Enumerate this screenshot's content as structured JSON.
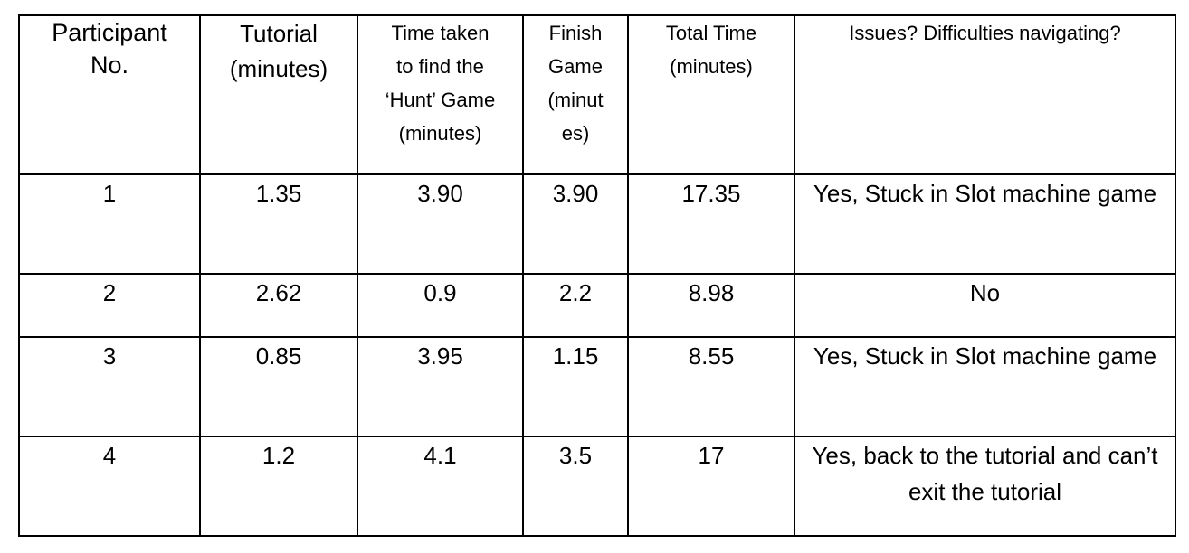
{
  "headers": [
    "Participant\nNo.",
    "Tutorial\n(minutes)",
    "Time taken\nto find the\n‘Hunt’ Game\n(minutes)",
    "Finish\nGame\n(minut\nes)",
    "Total Time\n(minutes)",
    "Issues? Difficulties navigating?"
  ],
  "rows": [
    {
      "participant": "1",
      "tutorial": "1.35",
      "hunt": "3.90",
      "finish": "3.90",
      "total": "17.35",
      "issues": "Yes, Stuck in Slot machine game"
    },
    {
      "participant": "2",
      "tutorial": "2.62",
      "hunt": "0.9",
      "finish": "2.2",
      "total": "8.98",
      "issues": "No"
    },
    {
      "participant": "3",
      "tutorial": "0.85",
      "hunt": "3.95",
      "finish": "1.15",
      "total": "8.55",
      "issues": "Yes, Stuck in Slot machine game"
    },
    {
      "participant": "4",
      "tutorial": "1.2",
      "hunt": "4.1",
      "finish": "3.5",
      "total": "17",
      "issues": "Yes, back to the tutorial and can’t exit the tutorial"
    }
  ]
}
